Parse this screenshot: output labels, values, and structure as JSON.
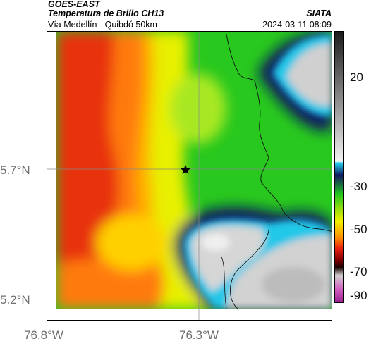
{
  "header": {
    "satellite": "GOES-EAST",
    "product": "Temperatura de Brillo CH13",
    "region": "Vía Medellín - Quibdó 50km",
    "source": "SIATA",
    "datetime": "2024-03-11 08:09"
  },
  "axes": {
    "lat_ticks": [
      "5.7°N",
      "5.2°N"
    ],
    "lon_ticks": [
      "76.8°W",
      "76.3°W"
    ]
  },
  "colorbar": {
    "ticks": [
      "20",
      "-30",
      "-50",
      "-70",
      "-90"
    ],
    "colors": {
      "warm": "#4a4a4a",
      "light": "#d6d6d6",
      "cyan": "#22c8e8",
      "navy": "#101860",
      "green": "#22c41e",
      "yellow": "#f4f000",
      "orange": "#ff7a00",
      "red": "#d21010",
      "dark": "#2a0000",
      "magenta": "#b040a0"
    }
  },
  "map": {
    "marker_icon": "star-icon"
  }
}
